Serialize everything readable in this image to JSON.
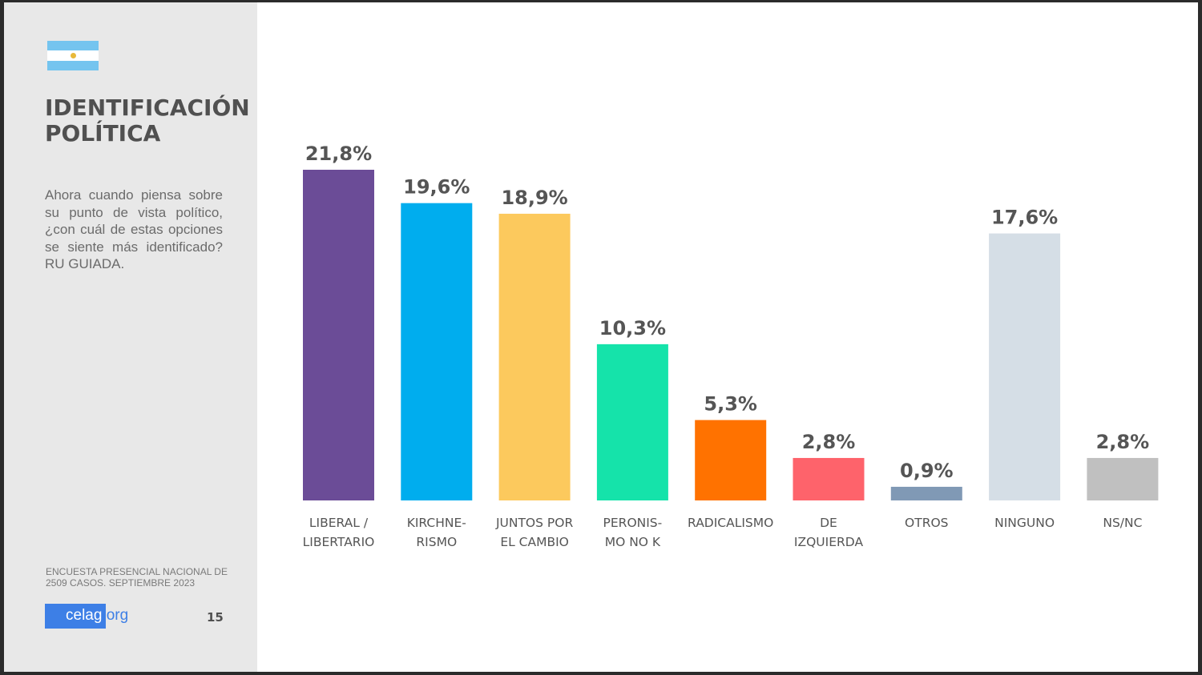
{
  "slide": {
    "title_lines": [
      "IDENTIFICACIÓN",
      "POLÍTICA"
    ],
    "question": "Ahora cuando piensa sobre su punto de vista político, ¿con cuál de estas opciones se siente más identificado? RU GUIADA.",
    "footnote_lines": [
      "ENCUESTA PRESENCIAL NACIONAL DE",
      "2509 CASOS. SEPTIEMBRE 2023"
    ],
    "logo": {
      "part1": "celag",
      "part2": ".org"
    },
    "page_number": "15",
    "flag_icon": "argentina-flag-icon"
  },
  "chart_data": {
    "type": "bar",
    "categories": [
      [
        "LIBERAL /",
        "LIBERTARIO"
      ],
      [
        "KIRCHNE-",
        "RISMO"
      ],
      [
        "JUNTOS POR",
        "EL CAMBIO"
      ],
      [
        "PERONIS-",
        "MO NO K"
      ],
      [
        "RADICALISMO"
      ],
      [
        "DE",
        "IZQUIERDA"
      ],
      [
        "OTROS"
      ],
      [
        "NINGUNO"
      ],
      [
        "NS/NC"
      ]
    ],
    "values": [
      21.8,
      19.6,
      18.9,
      10.3,
      5.3,
      2.8,
      0.9,
      17.6,
      2.8
    ],
    "value_labels": [
      "21,8%",
      "19,6%",
      "18,9%",
      "10,3%",
      "5,3%",
      "2,8%",
      "0,9%",
      "17,6%",
      "2,8%"
    ],
    "colors": [
      "#6b4c97",
      "#00adee",
      "#fcc95d",
      "#15e3aa",
      "#ff7200",
      "#fe636b",
      "#8099b5",
      "#d5dee6",
      "#c0c0c0"
    ],
    "ylim": [
      0,
      21.8
    ],
    "grid": false,
    "legend": "none"
  }
}
